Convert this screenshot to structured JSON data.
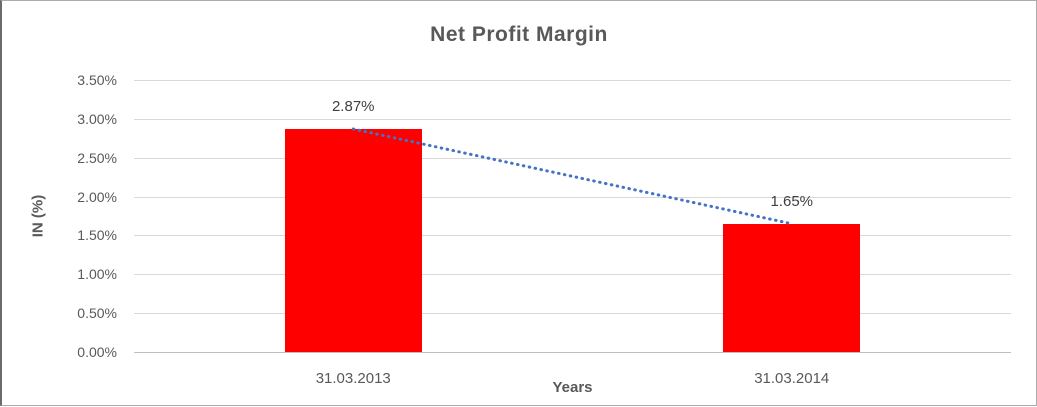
{
  "chart_data": {
    "type": "bar",
    "title": "Net Profit Margin",
    "xlabel": "Years",
    "ylabel": "IN (%)",
    "categories": [
      "31.03.2013",
      "31.03.2014"
    ],
    "values": [
      2.87,
      1.65
    ],
    "data_labels": [
      "2.87%",
      "1.65%"
    ],
    "ylim": [
      0,
      3.5
    ],
    "ytick_step": 0.5,
    "ytick_labels": [
      "0.00%",
      "0.50%",
      "1.00%",
      "1.50%",
      "2.00%",
      "2.50%",
      "3.00%",
      "3.50%"
    ],
    "grid": true,
    "legend": "none",
    "bar_color": "#ff0000",
    "trendline": {
      "style": "dotted",
      "color": "#4472c4",
      "points": [
        2.87,
        1.65
      ]
    }
  }
}
